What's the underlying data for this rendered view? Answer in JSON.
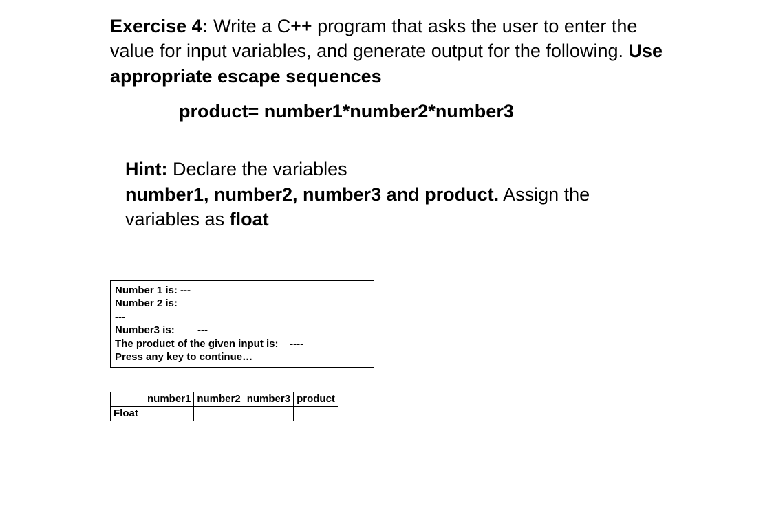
{
  "exercise": {
    "label": "Exercise 4:",
    "prompt_part1": " Write a C++ program that asks the user to enter the value for input variables, and generate output for the following. ",
    "prompt_bold_tail": "Use appropriate escape sequences",
    "formula": "product= number1*number2*number3"
  },
  "hint": {
    "label": "Hint:",
    "part1": " Declare the variables ",
    "vars": "number1, number2, number3 and product.",
    "part2": " Assign the variables as ",
    "float": "float"
  },
  "output_box": {
    "line1": "Number 1 is: ---",
    "line2": "Number 2 is:",
    "line3": "---",
    "line4": "Number3 is:        ---",
    "line5": "The product of the given input is:    ----",
    "line6": "Press any key to continue…"
  },
  "table": {
    "blank_header": "",
    "headers": [
      "number1",
      "number2",
      "number3",
      "product"
    ],
    "row_label": "Float",
    "cells": [
      "",
      "",
      "",
      ""
    ]
  }
}
